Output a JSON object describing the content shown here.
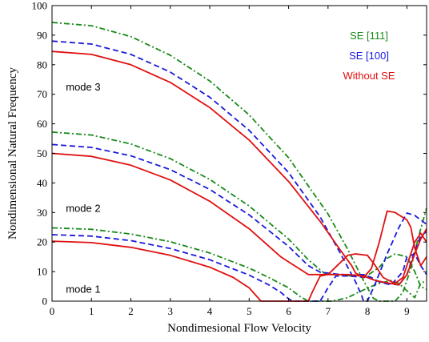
{
  "chart_data": {
    "type": "line",
    "title": "",
    "xlabel": "Nondimesional Flow Velocity",
    "ylabel": "Nondimensional Natural Frequency",
    "xlim": [
      0,
      9.5
    ],
    "ylim": [
      0,
      100
    ],
    "xticks": [
      0,
      1,
      2,
      3,
      4,
      5,
      6,
      7,
      8,
      9
    ],
    "yticks": [
      0,
      10,
      20,
      30,
      40,
      50,
      60,
      70,
      80,
      90,
      100
    ],
    "grid": false,
    "legend_position": "top-right",
    "annotations": [
      {
        "text": "mode 3",
        "x": 0.35,
        "y": 72.5
      },
      {
        "text": "mode 2",
        "x": 0.35,
        "y": 31.5
      },
      {
        "text": "mode 1",
        "x": 0.35,
        "y": 4
      }
    ],
    "series": [
      {
        "name": "SE [111]",
        "color": "#1a8a1a",
        "dash": "dashdot",
        "curves": [
          [
            [
              0,
              24.8
            ],
            [
              1,
              24.3
            ],
            [
              2,
              22.7
            ],
            [
              3,
              20.1
            ],
            [
              4,
              16.3
            ],
            [
              5,
              11.2
            ],
            [
              5.5,
              8.0
            ],
            [
              6,
              4.5
            ],
            [
              6.3,
              1.5
            ],
            [
              6.5,
              0
            ],
            [
              7.1,
              0
            ],
            [
              7.5,
              1.2
            ],
            [
              7.8,
              3.2
            ],
            [
              8.1,
              5.0
            ],
            [
              8.35,
              6.2
            ],
            [
              8.6,
              7.0
            ],
            [
              8.8,
              6.0
            ],
            [
              9.0,
              3.5
            ],
            [
              9.2,
              1.2
            ],
            [
              9.35,
              6
            ],
            [
              9.5,
              7
            ]
          ],
          [
            [
              0,
              57.2
            ],
            [
              1,
              56.2
            ],
            [
              2,
              53.2
            ],
            [
              3,
              48.2
            ],
            [
              4,
              41.2
            ],
            [
              5,
              32.2
            ],
            [
              6,
              21.0
            ],
            [
              6.5,
              14.0
            ],
            [
              6.9,
              9.5
            ],
            [
              7.2,
              9.0
            ],
            [
              7.6,
              8.5
            ],
            [
              8.0,
              8.7
            ],
            [
              8.3,
              11.5
            ],
            [
              8.5,
              14.5
            ],
            [
              8.7,
              16.0
            ],
            [
              9.0,
              15.0
            ],
            [
              9.2,
              10
            ],
            [
              9.35,
              5
            ],
            [
              9.5,
              4
            ]
          ],
          [
            [
              0,
              94.3
            ],
            [
              1,
              93.2
            ],
            [
              2,
              89.5
            ],
            [
              3,
              83.2
            ],
            [
              4,
              74.5
            ],
            [
              5,
              63.0
            ],
            [
              6,
              48.5
            ],
            [
              7,
              29.5
            ],
            [
              7.5,
              17.5
            ],
            [
              7.8,
              9.5
            ],
            [
              8.0,
              4.5
            ],
            [
              8.15,
              1
            ],
            [
              8.3,
              0
            ],
            [
              8.7,
              0
            ],
            [
              8.9,
              3
            ],
            [
              9.1,
              11
            ],
            [
              9.3,
              22
            ],
            [
              9.5,
              31.5
            ]
          ]
        ]
      },
      {
        "name": "SE [100]",
        "color": "#1a1adb",
        "dash": "dashed",
        "curves": [
          [
            [
              0,
              22.5
            ],
            [
              1,
              22.0
            ],
            [
              2,
              20.5
            ],
            [
              3,
              17.8
            ],
            [
              4,
              14.0
            ],
            [
              5,
              8.8
            ],
            [
              5.5,
              5.5
            ],
            [
              5.8,
              3.0
            ],
            [
              6.0,
              0.8
            ],
            [
              6.1,
              0
            ],
            [
              6.8,
              0
            ],
            [
              7.0,
              4.5
            ],
            [
              7.2,
              8.5
            ],
            [
              7.5,
              8.5
            ],
            [
              8.0,
              8.0
            ],
            [
              8.2,
              7.0
            ],
            [
              8.5,
              6.0
            ],
            [
              8.8,
              5.5
            ],
            [
              9.0,
              9
            ],
            [
              9.2,
              17
            ],
            [
              9.35,
              22
            ],
            [
              9.5,
              23.5
            ]
          ],
          [
            [
              0,
              53.0
            ],
            [
              1,
              52.0
            ],
            [
              2,
              49.2
            ],
            [
              3,
              44.5
            ],
            [
              4,
              37.8
            ],
            [
              5,
              29.2
            ],
            [
              6,
              18.5
            ],
            [
              6.5,
              12.0
            ],
            [
              6.8,
              9.8
            ],
            [
              7.2,
              9.2
            ],
            [
              7.6,
              8.8
            ],
            [
              7.9,
              9.0
            ],
            [
              8.1,
              8.0
            ],
            [
              8.3,
              6.5
            ],
            [
              8.6,
              5.5
            ],
            [
              8.9,
              10
            ],
            [
              9.0,
              15
            ],
            [
              9.2,
              16
            ],
            [
              9.35,
              12
            ],
            [
              9.5,
              9
            ]
          ],
          [
            [
              0,
              88.0
            ],
            [
              1,
              87.0
            ],
            [
              2,
              83.5
            ],
            [
              3,
              77.5
            ],
            [
              4,
              69.0
            ],
            [
              5,
              57.8
            ],
            [
              6,
              43.5
            ],
            [
              6.8,
              28.5
            ],
            [
              7.3,
              16.5
            ],
            [
              7.7,
              6.5
            ],
            [
              7.85,
              2.0
            ],
            [
              7.9,
              0
            ],
            [
              8.0,
              0
            ],
            [
              8.2,
              6
            ],
            [
              8.5,
              16
            ],
            [
              8.8,
              25
            ],
            [
              9.0,
              29.8
            ],
            [
              9.2,
              29.0
            ],
            [
              9.5,
              26
            ]
          ]
        ]
      },
      {
        "name": "Without SE",
        "color": "#e01010",
        "dash": "solid",
        "curves": [
          [
            [
              0,
              20.3
            ],
            [
              1,
              19.8
            ],
            [
              2,
              18.2
            ],
            [
              3,
              15.5
            ],
            [
              4,
              11.5
            ],
            [
              4.6,
              8.0
            ],
            [
              5.0,
              4.5
            ],
            [
              5.2,
              1.5
            ],
            [
              5.3,
              0
            ],
            [
              6.5,
              0
            ],
            [
              6.6,
              3
            ],
            [
              6.8,
              8.5
            ],
            [
              7.0,
              9.0
            ],
            [
              7.5,
              9.0
            ],
            [
              7.9,
              8.5
            ],
            [
              8.2,
              7.0
            ],
            [
              8.5,
              6.2
            ],
            [
              8.8,
              5.5
            ],
            [
              9.0,
              9
            ],
            [
              9.2,
              16
            ],
            [
              9.35,
              21
            ],
            [
              9.5,
              24.5
            ]
          ],
          [
            [
              0,
              50.0
            ],
            [
              1,
              49.0
            ],
            [
              2,
              46.0
            ],
            [
              3,
              41.0
            ],
            [
              4,
              33.8
            ],
            [
              5,
              24.5
            ],
            [
              5.8,
              15.0
            ],
            [
              6.5,
              9.0
            ],
            [
              6.7,
              9.0
            ],
            [
              7.0,
              9.0
            ],
            [
              7.5,
              15.5
            ],
            [
              7.7,
              16.0
            ],
            [
              8.0,
              15.5
            ],
            [
              8.2,
              12.0
            ],
            [
              8.4,
              8.0
            ],
            [
              8.7,
              6.0
            ],
            [
              8.9,
              8
            ],
            [
              9.2,
              20
            ],
            [
              9.35,
              23
            ],
            [
              9.5,
              20
            ]
          ],
          [
            [
              0,
              84.5
            ],
            [
              1,
              83.5
            ],
            [
              2,
              80.0
            ],
            [
              3,
              74.0
            ],
            [
              4,
              65.5
            ],
            [
              5,
              54.5
            ],
            [
              6,
              40.5
            ],
            [
              6.8,
              27.0
            ],
            [
              7.3,
              17.5
            ],
            [
              7.6,
              12.0
            ],
            [
              7.7,
              9.5
            ],
            [
              7.9,
              8.0
            ],
            [
              8.1,
              11
            ],
            [
              8.3,
              20
            ],
            [
              8.5,
              30.5
            ],
            [
              8.7,
              30.0
            ],
            [
              9.0,
              27.5
            ],
            [
              9.1,
              25
            ],
            [
              9.2,
              18
            ],
            [
              9.35,
              12
            ],
            [
              9.5,
              15
            ]
          ]
        ]
      }
    ]
  }
}
